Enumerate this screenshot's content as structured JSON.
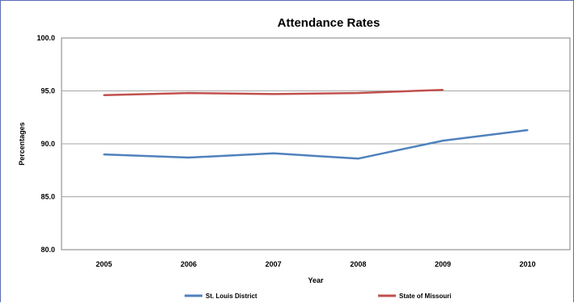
{
  "chart_data": {
    "type": "line",
    "title": "Attendance Rates",
    "xlabel": "Year",
    "ylabel": "Percentages",
    "categories": [
      "2005",
      "2006",
      "2007",
      "2008",
      "2009",
      "2010"
    ],
    "ylim": [
      80.0,
      100.0
    ],
    "yticks": [
      "80.0",
      "85.0",
      "90.0",
      "95.0",
      "100.0"
    ],
    "grid": "horizontal",
    "legend_position": "bottom",
    "series": [
      {
        "name": "St. Louis District",
        "color": "#4f81bd",
        "values": [
          89.0,
          88.7,
          89.1,
          88.6,
          90.3,
          91.3
        ]
      },
      {
        "name": "State of Missouri",
        "color": "#c0504d",
        "values": [
          94.6,
          94.8,
          94.7,
          94.8,
          95.1,
          null
        ]
      }
    ]
  }
}
